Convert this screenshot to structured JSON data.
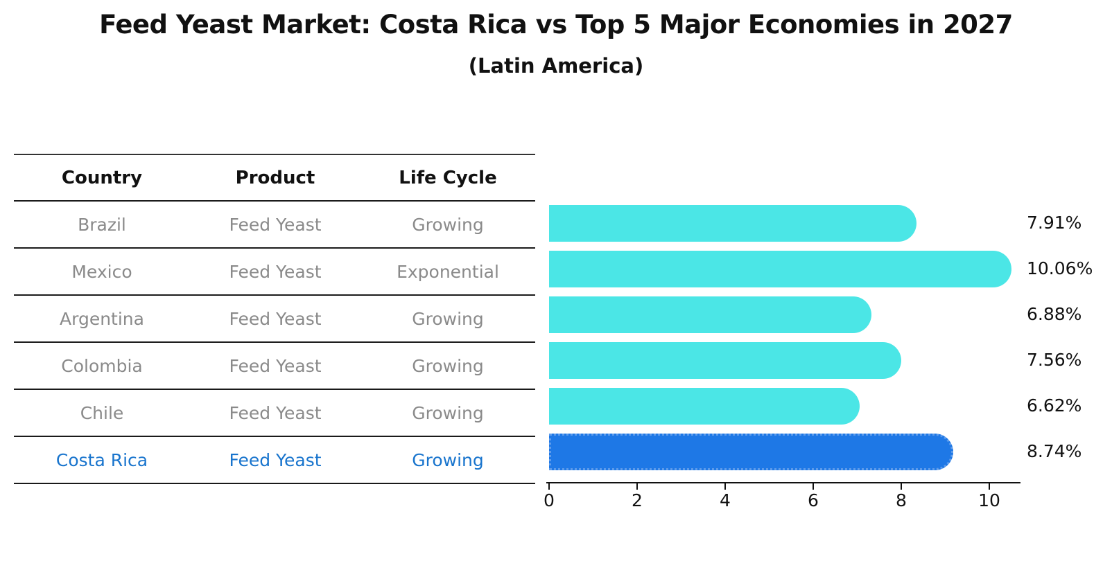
{
  "title": "Feed Yeast Market: Costa Rica vs Top 5 Major Economies in 2027",
  "subtitle": "(Latin America)",
  "table": {
    "headers": [
      "Country",
      "Product",
      "Life Cycle"
    ],
    "rows": [
      {
        "country": "Brazil",
        "product": "Feed Yeast",
        "life_cycle": "Growing"
      },
      {
        "country": "Mexico",
        "product": "Feed Yeast",
        "life_cycle": "Exponential"
      },
      {
        "country": "Argentina",
        "product": "Feed Yeast",
        "life_cycle": "Growing"
      },
      {
        "country": "Colombia",
        "product": "Feed Yeast",
        "life_cycle": "Growing"
      },
      {
        "country": "Chile",
        "product": "Feed Yeast",
        "life_cycle": "Growing"
      },
      {
        "country": "Costa Rica",
        "product": "Feed Yeast",
        "life_cycle": "Growing"
      }
    ],
    "highlight_row_index": 5
  },
  "chart_data": {
    "type": "bar",
    "orientation": "horizontal",
    "title": "Feed Yeast Market: Costa Rica vs Top 5 Major Economies in 2027",
    "subtitle": "(Latin America)",
    "categories": [
      "Brazil",
      "Mexico",
      "Argentina",
      "Colombia",
      "Chile",
      "Costa Rica"
    ],
    "values": [
      7.91,
      10.06,
      6.88,
      7.56,
      6.62,
      8.74
    ],
    "value_labels": [
      "7.91%",
      "10.06%",
      "6.88%",
      "7.56%",
      "6.62%",
      "8.74%"
    ],
    "xticks": [
      "0",
      "2",
      "4",
      "6",
      "8",
      "10"
    ],
    "xtick_values": [
      0,
      2,
      4,
      6,
      8,
      10
    ],
    "xlim": [
      0,
      10.7
    ],
    "xlabel": "",
    "ylabel": "",
    "grid": false,
    "legend": false,
    "bar_color": "#4BE6E6",
    "highlight_color": "#1E78E6",
    "highlight_index": 5
  },
  "colors": {
    "background": "#ffffff",
    "heading_text": "#111111",
    "table_text": "#8a8a8a",
    "highlight_text": "#1874CD",
    "axis": "#111111",
    "bar": "#4BE6E6",
    "highlight_bar": "#1E78E6"
  }
}
